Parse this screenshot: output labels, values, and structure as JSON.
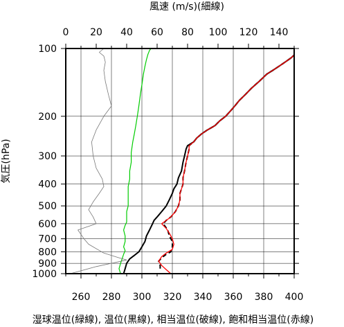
{
  "chart_data": {
    "type": "line",
    "title": "",
    "top_axis": {
      "label": "風速 (m/s)(細線)",
      "range": [
        0,
        150
      ],
      "ticks": [
        0,
        20,
        40,
        60,
        80,
        100,
        120,
        140
      ]
    },
    "bottom_axis": {
      "label": "湿球温位(緑線), 温位(黒線), 相当温位(破線), 飽和相当温位(赤線)",
      "range": [
        250,
        400
      ],
      "ticks": [
        260,
        280,
        300,
        320,
        340,
        360,
        380,
        400
      ]
    },
    "y_axis": {
      "label": "気圧(hPa)",
      "scale": "log",
      "inverted": true,
      "range": [
        1000,
        100
      ],
      "ticks": [
        100,
        200,
        300,
        400,
        500,
        600,
        700,
        800,
        900,
        1000
      ]
    },
    "grid": true,
    "series": [
      {
        "name": "温位",
        "color": "#000000",
        "style": "solid",
        "axis": "bottom",
        "points": [
          [
            288,
            1000
          ],
          [
            289,
            950
          ],
          [
            290,
            900
          ],
          [
            292,
            860
          ],
          [
            295,
            830
          ],
          [
            298,
            800
          ],
          [
            300,
            760
          ],
          [
            302,
            720
          ],
          [
            303,
            680
          ],
          [
            305,
            640
          ],
          [
            307,
            600
          ],
          [
            308,
            580
          ],
          [
            310,
            560
          ],
          [
            313,
            530
          ],
          [
            316,
            500
          ],
          [
            318,
            470
          ],
          [
            320,
            440
          ],
          [
            321,
            420
          ],
          [
            323,
            400
          ],
          [
            324,
            375
          ],
          [
            326,
            350
          ],
          [
            327,
            320
          ],
          [
            328,
            300
          ],
          [
            329,
            280
          ],
          [
            330,
            270
          ],
          [
            334,
            260
          ],
          [
            336,
            250
          ],
          [
            339,
            240
          ],
          [
            343,
            230
          ],
          [
            348,
            220
          ],
          [
            351,
            210
          ],
          [
            355,
            200
          ],
          [
            358,
            190
          ],
          [
            361,
            180
          ],
          [
            364,
            170
          ],
          [
            368,
            160
          ],
          [
            372,
            150
          ],
          [
            377,
            140
          ],
          [
            382,
            130
          ],
          [
            386,
            125
          ],
          [
            390,
            120
          ],
          [
            394,
            115
          ],
          [
            398,
            110
          ],
          [
            400,
            107
          ]
        ]
      },
      {
        "name": "相当温位",
        "color": "#000000",
        "style": "dashed",
        "axis": "bottom",
        "points": [
          [
            312,
            950
          ],
          [
            312,
            920
          ],
          [
            311,
            880
          ],
          [
            313,
            850
          ],
          [
            316,
            820
          ],
          [
            319,
            800
          ],
          [
            320,
            760
          ],
          [
            320,
            720
          ],
          [
            318,
            680
          ],
          [
            317,
            640
          ],
          [
            314,
            600
          ],
          [
            316,
            580
          ],
          [
            319,
            560
          ],
          [
            322,
            530
          ],
          [
            324,
            500
          ],
          [
            325,
            470
          ],
          [
            325,
            440
          ],
          [
            326,
            420
          ],
          [
            327,
            400
          ],
          [
            327,
            375
          ],
          [
            328,
            350
          ],
          [
            329,
            320
          ],
          [
            330,
            300
          ],
          [
            331,
            280
          ],
          [
            331,
            270
          ],
          [
            334,
            260
          ],
          [
            336,
            250
          ],
          [
            339,
            240
          ],
          [
            343,
            230
          ],
          [
            348,
            220
          ],
          [
            351,
            210
          ],
          [
            355,
            200
          ],
          [
            358,
            190
          ],
          [
            361,
            180
          ],
          [
            364,
            170
          ],
          [
            368,
            160
          ],
          [
            372,
            150
          ],
          [
            377,
            140
          ],
          [
            382,
            130
          ],
          [
            386,
            125
          ],
          [
            390,
            120
          ],
          [
            394,
            115
          ],
          [
            398,
            110
          ],
          [
            400,
            107
          ]
        ]
      },
      {
        "name": "飽和相当温位",
        "color": "#ff0000",
        "style": "solid",
        "axis": "bottom",
        "points": [
          [
            319,
            1000
          ],
          [
            316,
            960
          ],
          [
            313,
            920
          ],
          [
            311,
            880
          ],
          [
            313,
            840
          ],
          [
            316,
            810
          ],
          [
            320,
            780
          ],
          [
            321,
            740
          ],
          [
            320,
            700
          ],
          [
            318,
            660
          ],
          [
            316,
            630
          ],
          [
            313,
            600
          ],
          [
            316,
            580
          ],
          [
            319,
            560
          ],
          [
            322,
            530
          ],
          [
            324,
            500
          ],
          [
            325,
            470
          ],
          [
            325,
            440
          ],
          [
            326,
            420
          ],
          [
            327,
            400
          ],
          [
            327,
            375
          ],
          [
            328,
            350
          ],
          [
            329,
            320
          ],
          [
            330,
            300
          ],
          [
            331,
            280
          ],
          [
            331,
            270
          ],
          [
            334,
            260
          ],
          [
            336,
            250
          ],
          [
            339,
            240
          ],
          [
            343,
            230
          ],
          [
            348,
            220
          ],
          [
            351,
            210
          ],
          [
            355,
            200
          ],
          [
            358,
            190
          ],
          [
            361,
            180
          ],
          [
            364,
            170
          ],
          [
            368,
            160
          ],
          [
            372,
            150
          ],
          [
            377,
            140
          ],
          [
            382,
            130
          ],
          [
            386,
            125
          ],
          [
            390,
            120
          ],
          [
            394,
            115
          ],
          [
            398,
            110
          ],
          [
            400,
            107
          ]
        ]
      },
      {
        "name": "湿球温位",
        "color": "#00cc00",
        "style": "solid",
        "axis": "bottom",
        "points": [
          [
            286,
            1000
          ],
          [
            285,
            950
          ],
          [
            286,
            900
          ],
          [
            287,
            860
          ],
          [
            288,
            820
          ],
          [
            289,
            790
          ],
          [
            288,
            760
          ],
          [
            289,
            720
          ],
          [
            289,
            680
          ],
          [
            288,
            640
          ],
          [
            289,
            610
          ],
          [
            290,
            590
          ],
          [
            290,
            560
          ],
          [
            290,
            530
          ],
          [
            291,
            500
          ],
          [
            291,
            470
          ],
          [
            291,
            440
          ],
          [
            291,
            410
          ],
          [
            292,
            380
          ],
          [
            292,
            350
          ],
          [
            293,
            320
          ],
          [
            293,
            290
          ],
          [
            294,
            260
          ],
          [
            295,
            240
          ],
          [
            296,
            220
          ],
          [
            297,
            200
          ],
          [
            298,
            180
          ],
          [
            299,
            160
          ],
          [
            300,
            145
          ],
          [
            301,
            130
          ],
          [
            302,
            120
          ],
          [
            303,
            112
          ],
          [
            304,
            106
          ],
          [
            305,
            102
          ],
          [
            306,
            100
          ]
        ]
      },
      {
        "name": "風速",
        "color": "#777777",
        "style": "thin",
        "axis": "top",
        "points": [
          [
            3,
            1000
          ],
          [
            20,
            930
          ],
          [
            40,
            870
          ],
          [
            35,
            850
          ],
          [
            25,
            810
          ],
          [
            15,
            740
          ],
          [
            12,
            700
          ],
          [
            8,
            640
          ],
          [
            20,
            600
          ],
          [
            18,
            560
          ],
          [
            15,
            520
          ],
          [
            18,
            480
          ],
          [
            22,
            440
          ],
          [
            25,
            410
          ],
          [
            24,
            380
          ],
          [
            20,
            340
          ],
          [
            18,
            300
          ],
          [
            17,
            260
          ],
          [
            20,
            230
          ],
          [
            25,
            200
          ],
          [
            30,
            180
          ],
          [
            28,
            160
          ],
          [
            26,
            140
          ],
          [
            25,
            125
          ],
          [
            26,
            115
          ],
          [
            25,
            108
          ],
          [
            22,
            104
          ],
          [
            25,
            100
          ]
        ]
      }
    ]
  }
}
